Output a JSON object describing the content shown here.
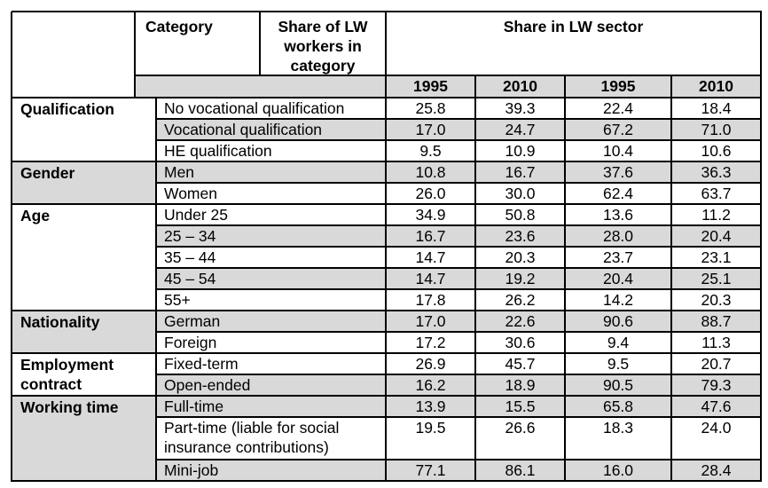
{
  "header": {
    "category": "Category",
    "share_lw_workers": "Share of LW workers in category",
    "share_lw_sector": "Share in LW sector",
    "years": [
      "1995",
      "2010",
      "1995",
      "2010"
    ]
  },
  "groups": [
    {
      "name": "Qualification",
      "rows": [
        {
          "label": "No vocational qualification",
          "values": [
            "25.8",
            "39.3",
            "22.4",
            "18.4"
          ]
        },
        {
          "label": "Vocational qualification",
          "values": [
            "17.0",
            "24.7",
            "67.2",
            "71.0"
          ]
        },
        {
          "label": "HE qualification",
          "values": [
            "9.5",
            "10.9",
            "10.4",
            "10.6"
          ]
        }
      ]
    },
    {
      "name": "Gender",
      "rows": [
        {
          "label": "Men",
          "values": [
            "10.8",
            "16.7",
            "37.6",
            "36.3"
          ]
        },
        {
          "label": "Women",
          "values": [
            "26.0",
            "30.0",
            "62.4",
            "63.7"
          ]
        }
      ]
    },
    {
      "name": "Age",
      "rows": [
        {
          "label": "Under 25",
          "values": [
            "34.9",
            "50.8",
            "13.6",
            "11.2"
          ]
        },
        {
          "label": "25 – 34",
          "values": [
            "16.7",
            "23.6",
            "28.0",
            "20.4"
          ]
        },
        {
          "label": "35 – 44",
          "values": [
            "14.7",
            "20.3",
            "23.7",
            "23.1"
          ]
        },
        {
          "label": "45 – 54",
          "values": [
            "14.7",
            "19.2",
            "20.4",
            "25.1"
          ]
        },
        {
          "label": "55+",
          "values": [
            "17.8",
            "26.2",
            "14.2",
            "20.3"
          ]
        }
      ]
    },
    {
      "name": "Nationality",
      "rows": [
        {
          "label": "German",
          "values": [
            "17.0",
            "22.6",
            "90.6",
            "88.7"
          ]
        },
        {
          "label": "Foreign",
          "values": [
            "17.2",
            "30.6",
            "9.4",
            "11.3"
          ]
        }
      ]
    },
    {
      "name": "Employment contract",
      "rows": [
        {
          "label": "Fixed-term",
          "values": [
            "26.9",
            "45.7",
            "9.5",
            "20.7"
          ]
        },
        {
          "label": "Open-ended",
          "values": [
            "16.2",
            "18.9",
            "90.5",
            "79.3"
          ]
        }
      ]
    },
    {
      "name": "Working time",
      "rows": [
        {
          "label": "Full-time",
          "values": [
            "13.9",
            "15.5",
            "65.8",
            "47.6"
          ]
        },
        {
          "label": "Part-time (liable for social insurance contributions)",
          "values": [
            "19.5",
            "26.6",
            "18.3",
            "24.0"
          ]
        },
        {
          "label": "Mini-job",
          "values": [
            "77.1",
            "86.1",
            "16.0",
            "28.4"
          ]
        }
      ]
    }
  ]
}
